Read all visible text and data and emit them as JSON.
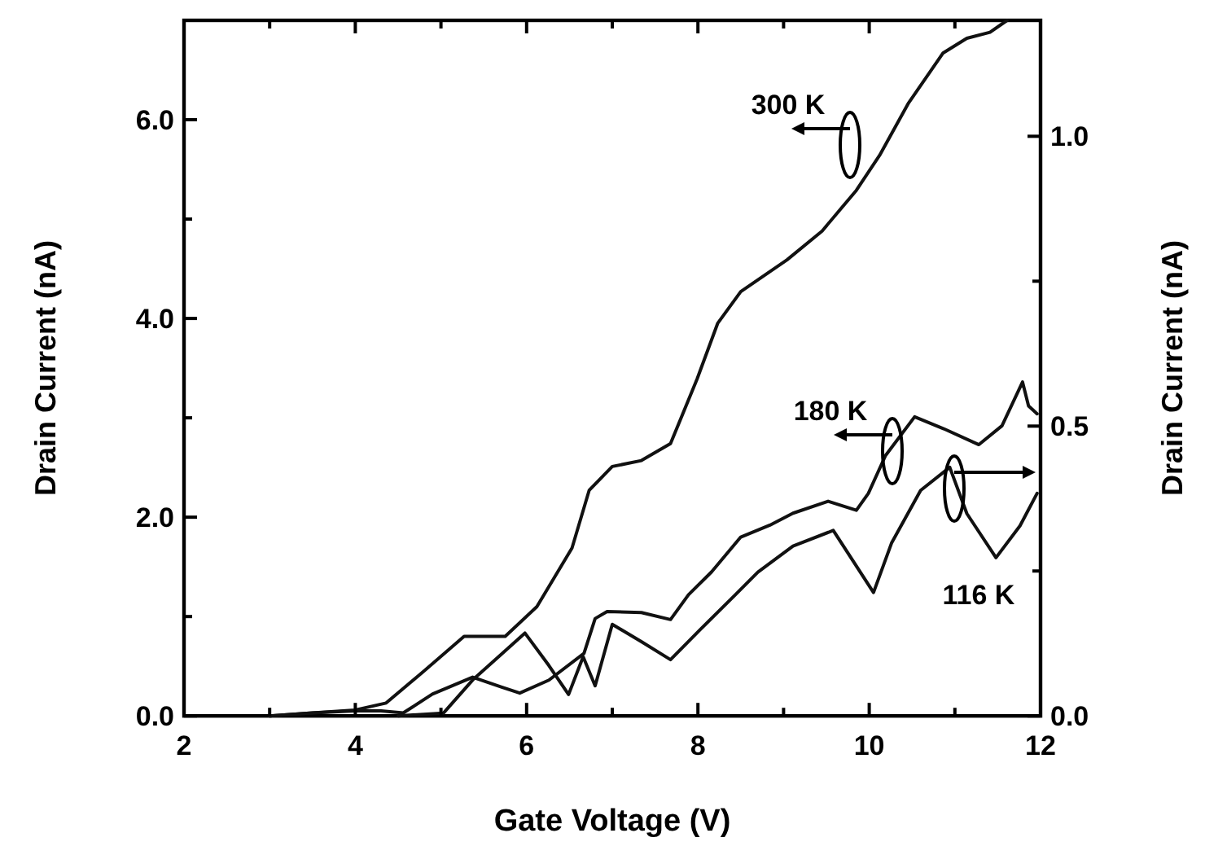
{
  "chart_data": {
    "type": "line",
    "xlabel": "Gate Voltage (V)",
    "ylabel": "Drain Current (nA)",
    "y2label": "Drain Current (nA)",
    "xlim": [
      2,
      12
    ],
    "xticks": [
      2,
      {
        "value": 3,
        "label": null
      },
      4,
      {
        "value": 5,
        "label": null
      },
      6,
      {
        "value": 7,
        "label": null
      },
      8,
      {
        "value": 9,
        "label": null
      },
      10,
      {
        "value": 11,
        "label": null
      },
      12
    ],
    "ylim": [
      0,
      7
    ],
    "yticks": [
      {
        "value": 0,
        "label": "0.0"
      },
      {
        "value": 1,
        "label": null
      },
      {
        "value": 2,
        "label": "2.0"
      },
      {
        "value": 3,
        "label": null
      },
      {
        "value": 4,
        "label": "4.0"
      },
      {
        "value": 5,
        "label": null
      },
      {
        "value": 6,
        "label": "6.0"
      }
    ],
    "y2lim": [
      0,
      1.2
    ],
    "y2ticks": [
      {
        "value": 0,
        "label": "0.0"
      },
      {
        "value": 0.25,
        "label": null
      },
      {
        "value": 0.5,
        "label": "0.5"
      },
      {
        "value": 0.75,
        "label": null
      },
      {
        "value": 1,
        "label": "1.0"
      }
    ],
    "grid": false,
    "marker": "none",
    "line_style": "solid",
    "series": [
      {
        "color": "#111111",
        "x": [
          3.0,
          3.5,
          4.0,
          4.36,
          4.8,
          5.27,
          5.75,
          6.12,
          6.53,
          6.73,
          7.0,
          7.34,
          7.68,
          7.99,
          8.23,
          8.5,
          9.04,
          9.45,
          9.85,
          10.12,
          10.46,
          10.86,
          11.14,
          11.41,
          11.61
        ],
        "values": [
          0,
          0.03,
          0.06,
          0.13,
          0.45,
          0.8,
          0.8,
          1.1,
          1.69,
          2.27,
          2.51,
          2.57,
          2.74,
          3.39,
          3.95,
          4.27,
          4.59,
          4.88,
          5.29,
          5.64,
          6.17,
          6.67,
          6.82,
          6.88,
          7.0
        ]
      },
      {
        "color": "#111111",
        "x": [
          3.0,
          3.5,
          4.0,
          4.3,
          4.56,
          4.9,
          5.37,
          5.71,
          5.92,
          6.26,
          6.67,
          6.8,
          6.94,
          7.34,
          7.68,
          7.89,
          8.16,
          8.5,
          8.84,
          9.11,
          9.52,
          9.85,
          9.99,
          10.19,
          10.53,
          10.87,
          11.28,
          11.55,
          11.79,
          11.86,
          11.96
        ],
        "values": [
          0,
          0.03,
          0.05,
          0.05,
          0.03,
          0.22,
          0.39,
          0.29,
          0.23,
          0.36,
          0.63,
          0.98,
          1.05,
          1.04,
          0.97,
          1.22,
          1.45,
          1.8,
          1.92,
          2.04,
          2.16,
          2.07,
          2.24,
          2.62,
          3.01,
          2.89,
          2.73,
          2.92,
          3.36,
          3.12,
          3.04
        ]
      },
      {
        "color": "#111111",
        "axis": "y2",
        "x": [
          4.5,
          5.03,
          5.37,
          5.71,
          5.98,
          6.26,
          6.49,
          6.66,
          6.8,
          7.0,
          7.34,
          7.68,
          8.02,
          8.43,
          8.7,
          9.11,
          9.58,
          10.05,
          10.26,
          10.6,
          10.94,
          11.14,
          11.48,
          11.76,
          11.96
        ],
        "values": [
          0,
          0.005,
          0.062,
          0.107,
          0.143,
          0.087,
          0.037,
          0.102,
          0.052,
          0.158,
          0.128,
          0.097,
          0.148,
          0.208,
          0.248,
          0.293,
          0.32,
          0.213,
          0.298,
          0.389,
          0.429,
          0.349,
          0.273,
          0.328,
          0.384
        ]
      }
    ],
    "annotations": [
      "300 K",
      "180 K",
      "116 K"
    ]
  }
}
